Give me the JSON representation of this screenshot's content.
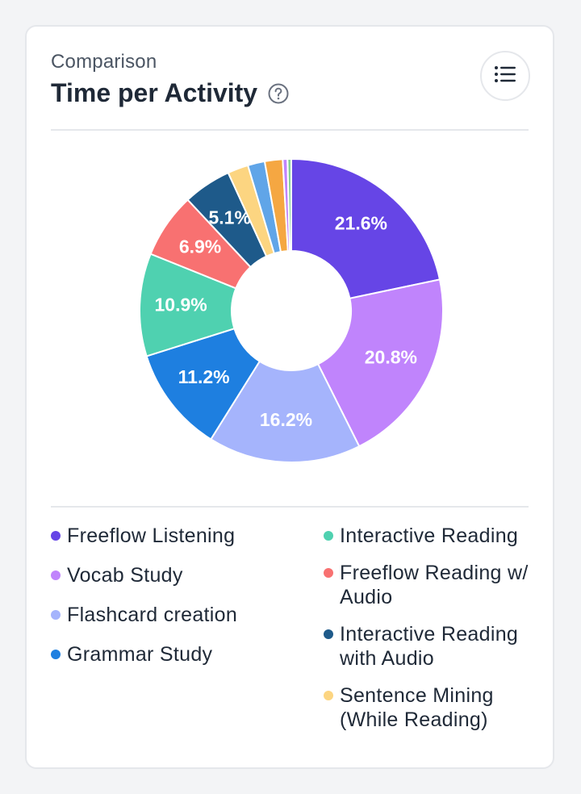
{
  "card": {
    "subtitle": "Comparison",
    "title": "Time per Activity",
    "help_icon": "question-circle-icon",
    "menu_icon": "list-icon"
  },
  "colors": {
    "text": "#1f2937",
    "muted": "#4b5563",
    "border": "#e5e7eb"
  },
  "chart_data": {
    "type": "pie",
    "donut": true,
    "slices": [
      {
        "label": "Freeflow Listening",
        "value": 21.6,
        "value_label": "21.6%",
        "color": "#6645e6"
      },
      {
        "label": "Vocab Study",
        "value": 20.8,
        "value_label": "20.8%",
        "color": "#c084fc"
      },
      {
        "label": "Flashcard creation",
        "value": 16.2,
        "value_label": "16.2%",
        "color": "#a5b4fc"
      },
      {
        "label": "Grammar Study",
        "value": 11.2,
        "value_label": "11.2%",
        "color": "#1e7fe0"
      },
      {
        "label": "Interactive Reading",
        "value": 10.9,
        "value_label": "10.9%",
        "color": "#4fd1b0"
      },
      {
        "label": "Freeflow Reading w/ Audio",
        "value": 6.9,
        "value_label": "6.9%",
        "color": "#f87171"
      },
      {
        "label": "Interactive Reading with Audio",
        "value": 5.1,
        "value_label": "5.1%",
        "color": "#1e5a8a"
      },
      {
        "label": "Sentence Mining (While Reading)",
        "value": 2.2,
        "value_label": "",
        "color": "#fcd581"
      },
      {
        "label": "",
        "value": 1.8,
        "value_label": "",
        "color": "#60a5e8"
      },
      {
        "label": "",
        "value": 1.9,
        "value_label": "",
        "color": "#f5a742"
      },
      {
        "label": "",
        "value": 0.5,
        "value_label": "",
        "color": "#c084fc"
      },
      {
        "label": "",
        "value": 0.4,
        "value_label": "",
        "color": "#86d19a"
      }
    ]
  },
  "legend": {
    "left": [
      {
        "label": "Freeflow Listening",
        "color": "#6645e6"
      },
      {
        "label": "Vocab Study",
        "color": "#c084fc"
      },
      {
        "label": "Flashcard creation",
        "color": "#a5b4fc"
      },
      {
        "label": "Grammar Study",
        "color": "#1e7fe0"
      }
    ],
    "right": [
      {
        "label": "Interactive Reading",
        "color": "#4fd1b0"
      },
      {
        "label": "Freeflow Reading w/ Audio",
        "color": "#f87171"
      },
      {
        "label": "Interactive Reading with Audio",
        "color": "#1e5a8a"
      },
      {
        "label": "Sentence Mining (While Reading)",
        "color": "#fcd581"
      }
    ]
  }
}
